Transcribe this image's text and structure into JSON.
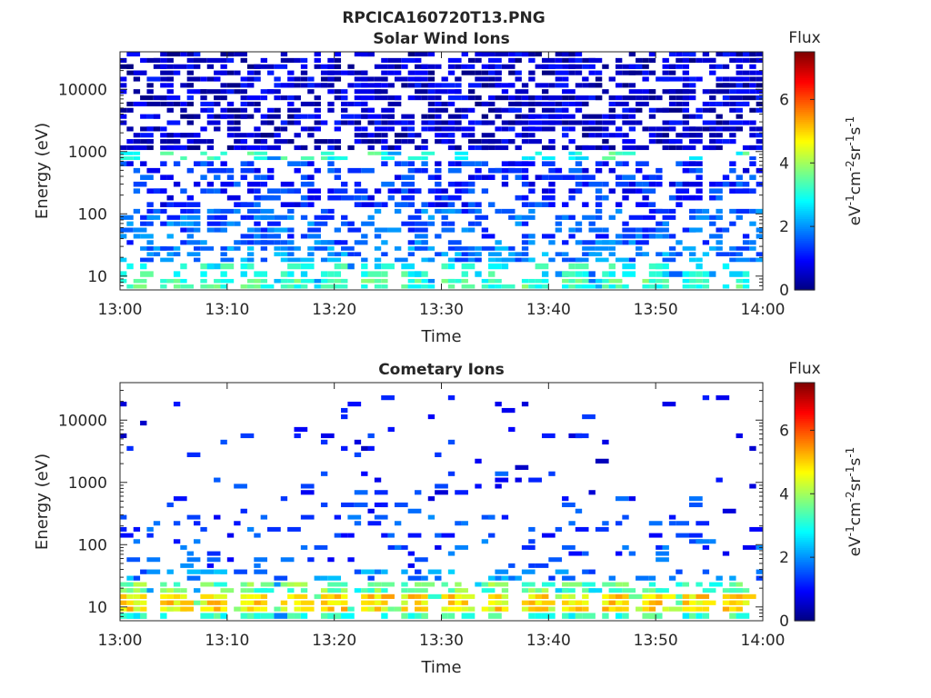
{
  "figure": {
    "title": "RPCICA160720T13.PNG"
  },
  "chart_data": [
    {
      "type": "heatmap",
      "title": "Solar Wind Ions",
      "xlabel": "Time",
      "ylabel": "Energy (eV)",
      "x_ticks": [
        "13:00",
        "13:10",
        "13:20",
        "13:30",
        "13:40",
        "13:50",
        "14:00"
      ],
      "x_range": [
        "13:00",
        "14:00"
      ],
      "y_scale": "log",
      "y_ticks": [
        10,
        100,
        1000,
        10000
      ],
      "y_tick_labels": [
        "10",
        "100",
        "1000",
        "10000"
      ],
      "y_range": [
        6,
        40000
      ],
      "colorbar": {
        "title": "Flux",
        "unit_label": "eV-1cm-2sr-1s-1",
        "ticks": [
          0,
          2,
          4,
          6
        ],
        "range": [
          0,
          7.5
        ],
        "colormap": "jet"
      },
      "bands": [
        {
          "energy_range": [
            6,
            9
          ],
          "level": 3.0,
          "fill_fraction": 0.85,
          "periodic": true
        },
        {
          "energy_range": [
            9,
            16
          ],
          "level": 2.7,
          "fill_fraction": 0.55,
          "periodic": true
        },
        {
          "energy_range": [
            16,
            30
          ],
          "level": 1.9,
          "fill_fraction": 0.45
        },
        {
          "energy_range": [
            30,
            120
          ],
          "level": 1.6,
          "fill_fraction": 0.4
        },
        {
          "energy_range": [
            120,
            700
          ],
          "level": 1.2,
          "fill_fraction": 0.45
        },
        {
          "energy_range": [
            700,
            1000
          ],
          "level": 2.8,
          "fill_fraction": 0.3,
          "periodic": true
        },
        {
          "energy_range": [
            1000,
            40000
          ],
          "level": 0.6,
          "fill_fraction": 0.55
        }
      ]
    },
    {
      "type": "heatmap",
      "title": "Cometary Ions",
      "xlabel": "Time",
      "ylabel": "Energy (eV)",
      "x_ticks": [
        "13:00",
        "13:10",
        "13:20",
        "13:30",
        "13:40",
        "13:50",
        "14:00"
      ],
      "x_range": [
        "13:00",
        "14:00"
      ],
      "y_scale": "log",
      "y_ticks": [
        10,
        100,
        1000,
        10000
      ],
      "y_tick_labels": [
        "10",
        "100",
        "1000",
        "10000"
      ],
      "y_range": [
        6,
        40000
      ],
      "colorbar": {
        "title": "Flux",
        "unit_label": "eV-1cm-2sr-1s-1",
        "ticks": [
          0,
          2,
          4,
          6
        ],
        "range": [
          0,
          7.5
        ],
        "colormap": "jet"
      },
      "bands": [
        {
          "energy_range": [
            6,
            8
          ],
          "level": 2.8,
          "fill_fraction": 0.6,
          "periodic": true
        },
        {
          "energy_range": [
            8,
            16
          ],
          "level": 4.5,
          "fill_fraction": 0.9,
          "periodic": true
        },
        {
          "energy_range": [
            16,
            25
          ],
          "level": 3.3,
          "fill_fraction": 0.7,
          "periodic": true
        },
        {
          "energy_range": [
            25,
            40
          ],
          "level": 1.9,
          "fill_fraction": 0.25
        },
        {
          "energy_range": [
            40,
            300
          ],
          "level": 1.4,
          "fill_fraction": 0.12
        },
        {
          "energy_range": [
            300,
            1500
          ],
          "level": 1.2,
          "fill_fraction": 0.07
        },
        {
          "energy_range": [
            1500,
            25000
          ],
          "level": 1.0,
          "fill_fraction": 0.03
        }
      ]
    }
  ]
}
